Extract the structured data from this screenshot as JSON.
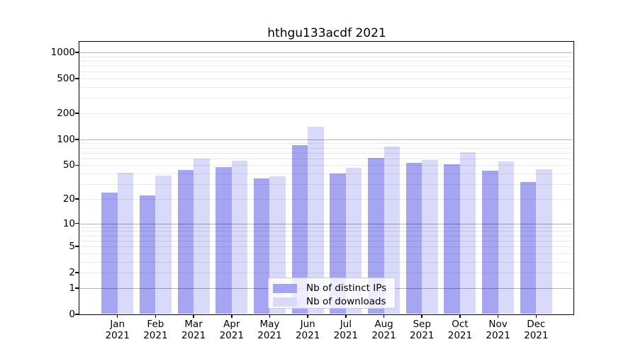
{
  "chart_data": {
    "type": "bar",
    "title": "hthgu133acdf 2021",
    "x_month_labels": [
      "Jan",
      "Feb",
      "Mar",
      "Apr",
      "May",
      "Jun",
      "Jul",
      "Aug",
      "Sep",
      "Oct",
      "Nov",
      "Dec"
    ],
    "x_year_label": "2021",
    "series": [
      {
        "name": "Nb of distinct IPs",
        "color": "#a5a5f2",
        "values": [
          24,
          22,
          44,
          48,
          35,
          85,
          40,
          61,
          53,
          51,
          43,
          32
        ]
      },
      {
        "name": "Nb of downloads",
        "color": "#d9d9f9",
        "values": [
          41,
          38,
          60,
          57,
          37,
          140,
          47,
          82,
          58,
          71,
          56,
          45
        ]
      }
    ],
    "yscale": "log1p",
    "ylim": [
      0,
      1320
    ],
    "yticks": [
      0,
      1,
      2,
      5,
      10,
      20,
      50,
      100,
      200,
      500,
      1000
    ],
    "ytick_labels": [
      "0",
      "1",
      "2",
      "5",
      "10",
      "20",
      "50",
      "100",
      "200",
      "500",
      "1000"
    ],
    "grid": {
      "shown": true,
      "major_at": [
        1,
        10,
        100,
        1000
      ],
      "major_color": "#b3b3b3",
      "minor_color": "#e8e8e8"
    },
    "legend": {
      "position": "lower-center",
      "entries": [
        "Nb of distinct IPs",
        "Nb of downloads"
      ]
    }
  }
}
